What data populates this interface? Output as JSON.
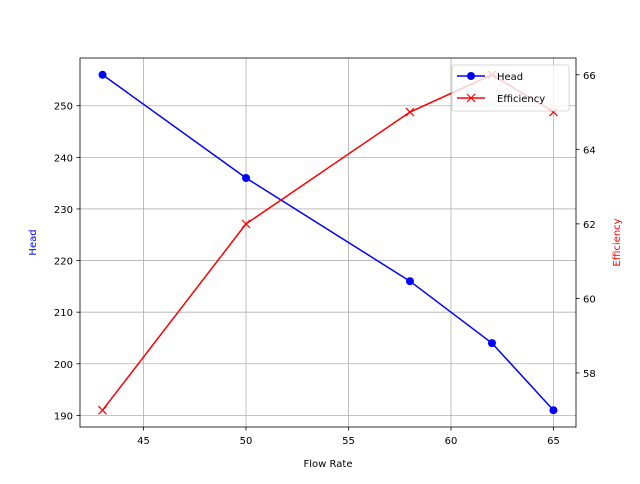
{
  "chart_data": {
    "type": "line",
    "x": [
      43,
      50,
      58,
      62,
      65
    ],
    "xlabel": "Flow Rate",
    "xlim": [
      41.9,
      66.1
    ],
    "xticks": [
      45,
      50,
      55,
      60,
      65
    ],
    "grid": true,
    "legend_position": "top-right",
    "series": [
      {
        "name": "Head",
        "axis": "left",
        "color": "#0000ff",
        "marker": "circle",
        "values": [
          256,
          236,
          216,
          204,
          191
        ]
      },
      {
        "name": "Efficiency",
        "axis": "right",
        "color": "#ff0000",
        "marker": "x",
        "values": [
          57,
          62,
          65,
          66,
          65
        ]
      }
    ],
    "ylabel_left": "Head",
    "ylim_left": [
      187.75,
      259.25
    ],
    "yticks_left": [
      190,
      200,
      210,
      220,
      230,
      240,
      250
    ],
    "ylabel_right": "Efficiency",
    "ylim_right": [
      56.55,
      66.45
    ],
    "yticks_right": [
      58,
      60,
      62,
      64,
      66
    ]
  }
}
